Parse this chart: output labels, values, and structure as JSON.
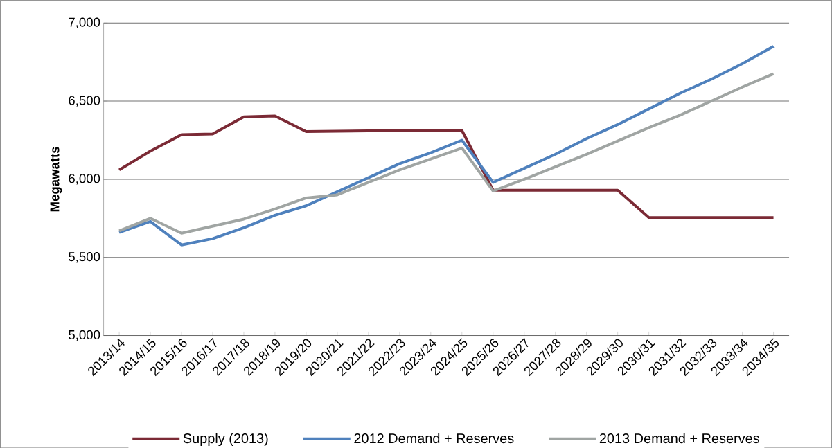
{
  "chart_data": {
    "type": "line",
    "ylabel": "Megawatts",
    "categories": [
      "2013/14",
      "2014/15",
      "2015/16",
      "2016/17",
      "2017/18",
      "2018/19",
      "2019/20",
      "2020/21",
      "2021/22",
      "2022/23",
      "2023/24",
      "2024/25",
      "2025/26",
      "2026/27",
      "2027/28",
      "2028/29",
      "2029/30",
      "2030/31",
      "2031/32",
      "2032/33",
      "2033/34",
      "2034/35"
    ],
    "series": [
      {
        "name": "Supply (2013)",
        "color": "#7b2a35",
        "values": [
          6060,
          6180,
          6285,
          6290,
          6400,
          6405,
          6305,
          6308,
          6310,
          6312,
          6312,
          6312,
          5930,
          5930,
          5930,
          5930,
          5930,
          5755,
          5755,
          5755,
          5755,
          5755
        ]
      },
      {
        "name": "2012 Demand + Reserves",
        "color": "#4f81bd",
        "values": [
          5660,
          5730,
          5580,
          5620,
          5690,
          5770,
          5830,
          5920,
          6010,
          6100,
          6170,
          6250,
          5980,
          6070,
          6160,
          6260,
          6350,
          6450,
          6550,
          6640,
          6740,
          6850
        ]
      },
      {
        "name": "2013 Demand + Reserves",
        "color": "#a0a5a3",
        "values": [
          5670,
          5750,
          5655,
          5700,
          5745,
          5810,
          5880,
          5900,
          5980,
          6060,
          6130,
          6200,
          5925,
          6000,
          6080,
          6160,
          6245,
          6330,
          6410,
          6500,
          6590,
          6675
        ]
      }
    ],
    "ylim": [
      5000,
      7000
    ],
    "yticks": [
      {
        "value": 5000,
        "label": "5,000"
      },
      {
        "value": 5500,
        "label": "5,500"
      },
      {
        "value": 6000,
        "label": "6,000"
      },
      {
        "value": 6500,
        "label": "6,500"
      },
      {
        "value": 7000,
        "label": "7,000"
      }
    ],
    "grid": "y",
    "legend": "bottom",
    "marker": "none",
    "line_style": "solid"
  }
}
